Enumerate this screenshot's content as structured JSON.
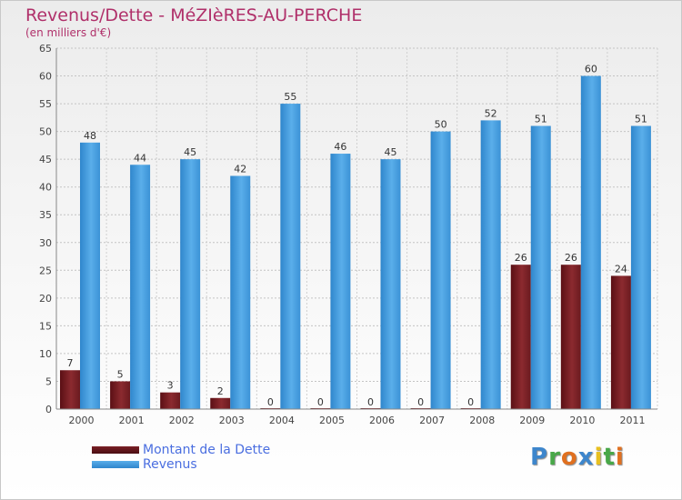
{
  "colors": {
    "title": "#b0306a",
    "debt": "#7a1f25",
    "revenue": "#4aa0e2",
    "legend_text": "#4a6ee0",
    "axis_text": "#444444"
  },
  "legend": {
    "debt_label": "Montant de la Dette",
    "revenue_label": "Revenus"
  },
  "logo": {
    "text": "Proxiti",
    "letters": [
      {
        "ch": "P",
        "color": "#3d86cc"
      },
      {
        "ch": "r",
        "color": "#48a848"
      },
      {
        "ch": "o",
        "color": "#e07020"
      },
      {
        "ch": "x",
        "color": "#3d86cc"
      },
      {
        "ch": "i",
        "color": "#e8c020"
      },
      {
        "ch": "t",
        "color": "#48a848"
      },
      {
        "ch": "i",
        "color": "#e07020"
      }
    ]
  },
  "chart_data": {
    "type": "bar",
    "title": "Revenus/Dette - MéZIèRES-AU-PERCHE",
    "subtitle": "(en milliers d'€)",
    "categories": [
      "2000",
      "2001",
      "2002",
      "2003",
      "2004",
      "2005",
      "2006",
      "2007",
      "2008",
      "2009",
      "2010",
      "2011"
    ],
    "series": [
      {
        "name": "Montant de la Dette",
        "values": [
          7,
          5,
          3,
          2,
          0,
          0,
          0,
          0,
          0,
          26,
          26,
          24
        ]
      },
      {
        "name": "Revenus",
        "values": [
          48,
          44,
          45,
          42,
          55,
          46,
          45,
          50,
          52,
          51,
          60,
          51
        ]
      }
    ],
    "ylim": [
      0,
      65
    ],
    "yticks": [
      0,
      5,
      10,
      15,
      20,
      25,
      30,
      35,
      40,
      45,
      50,
      55,
      60,
      65
    ],
    "grid": true
  }
}
